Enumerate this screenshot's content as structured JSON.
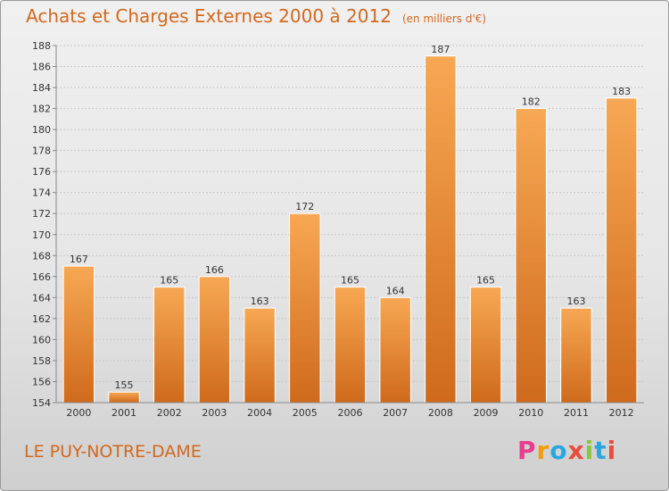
{
  "title": "Achats et Charges Externes 2000 à 2012",
  "units": "(en milliers d'€)",
  "commune": "LE PUY-NOTRE-DAME",
  "logo_text": "Proxiti",
  "logo_colors": [
    "#e83e8c",
    "#f39c12",
    "#2aa7df",
    "#e74c3c",
    "#8cc63f",
    "#2aa7df",
    "#e74c3c"
  ],
  "colors": {
    "title": "#d2691e",
    "bar_light": "#f7a854",
    "bar_dark": "#cf6a1c",
    "grid": "#c8c8c8",
    "axis_text": "#333333"
  },
  "chart_data": {
    "type": "bar",
    "categories": [
      "2000",
      "2001",
      "2002",
      "2003",
      "2004",
      "2005",
      "2006",
      "2007",
      "2008",
      "2009",
      "2010",
      "2011",
      "2012"
    ],
    "values": [
      167,
      155,
      165,
      166,
      163,
      172,
      165,
      164,
      187,
      165,
      182,
      163,
      183
    ],
    "ylim": [
      154,
      188
    ],
    "yticks": [
      154,
      156,
      158,
      160,
      162,
      164,
      166,
      168,
      170,
      172,
      174,
      176,
      178,
      180,
      182,
      184,
      186,
      188
    ],
    "grid": true,
    "data_labels": true
  }
}
